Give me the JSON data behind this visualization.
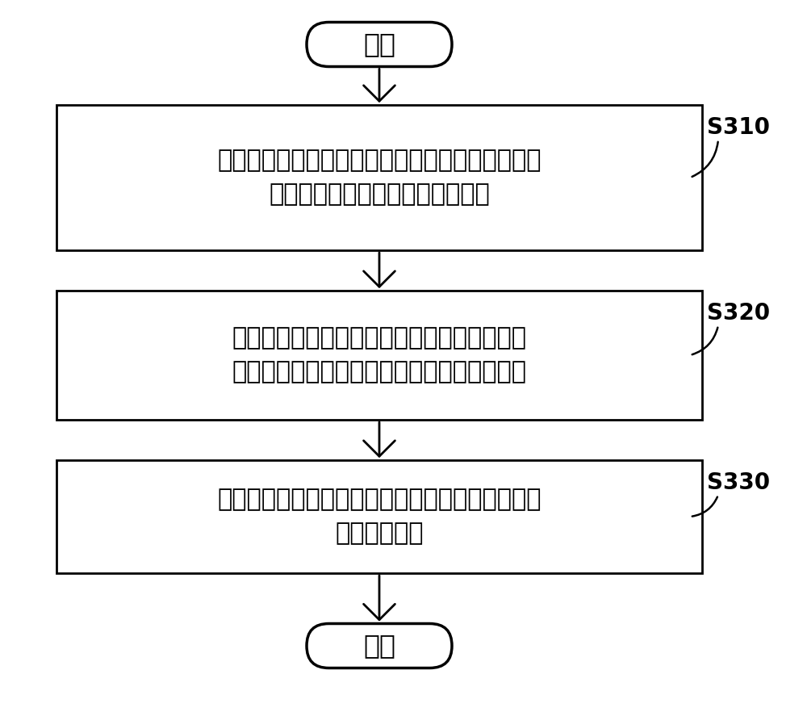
{
  "background_color": "#ffffff",
  "start_label": "开始",
  "end_label": "结束",
  "steps": [
    {
      "id": "S310",
      "label": "S310",
      "text_lines": [
        "从多个风力发电机组中获取上风侧风力发电机组的",
        "信息和下风侧风力发电机组的信息"
      ]
    },
    {
      "id": "S320",
      "label": "S320",
      "text_lines": [
        "获取上风侧风力发电机组的风速数据进行统计",
        "分析，得到上风侧风发电机组的风速变化数据"
      ]
    },
    {
      "id": "S330",
      "label": "S330",
      "text_lines": [
        "将上风侧风发电机组的风速变化数据发送给下风侧",
        "风力发电机组"
      ]
    }
  ],
  "box_fill": "#ffffff",
  "box_edge": "#000000",
  "arrow_color": "#000000",
  "text_color": "#000000",
  "label_color": "#000000",
  "font_size_main": 22,
  "font_size_label": 20,
  "font_size_terminal": 24,
  "fig_width": 10.0,
  "fig_height": 8.82,
  "dpi": 100
}
